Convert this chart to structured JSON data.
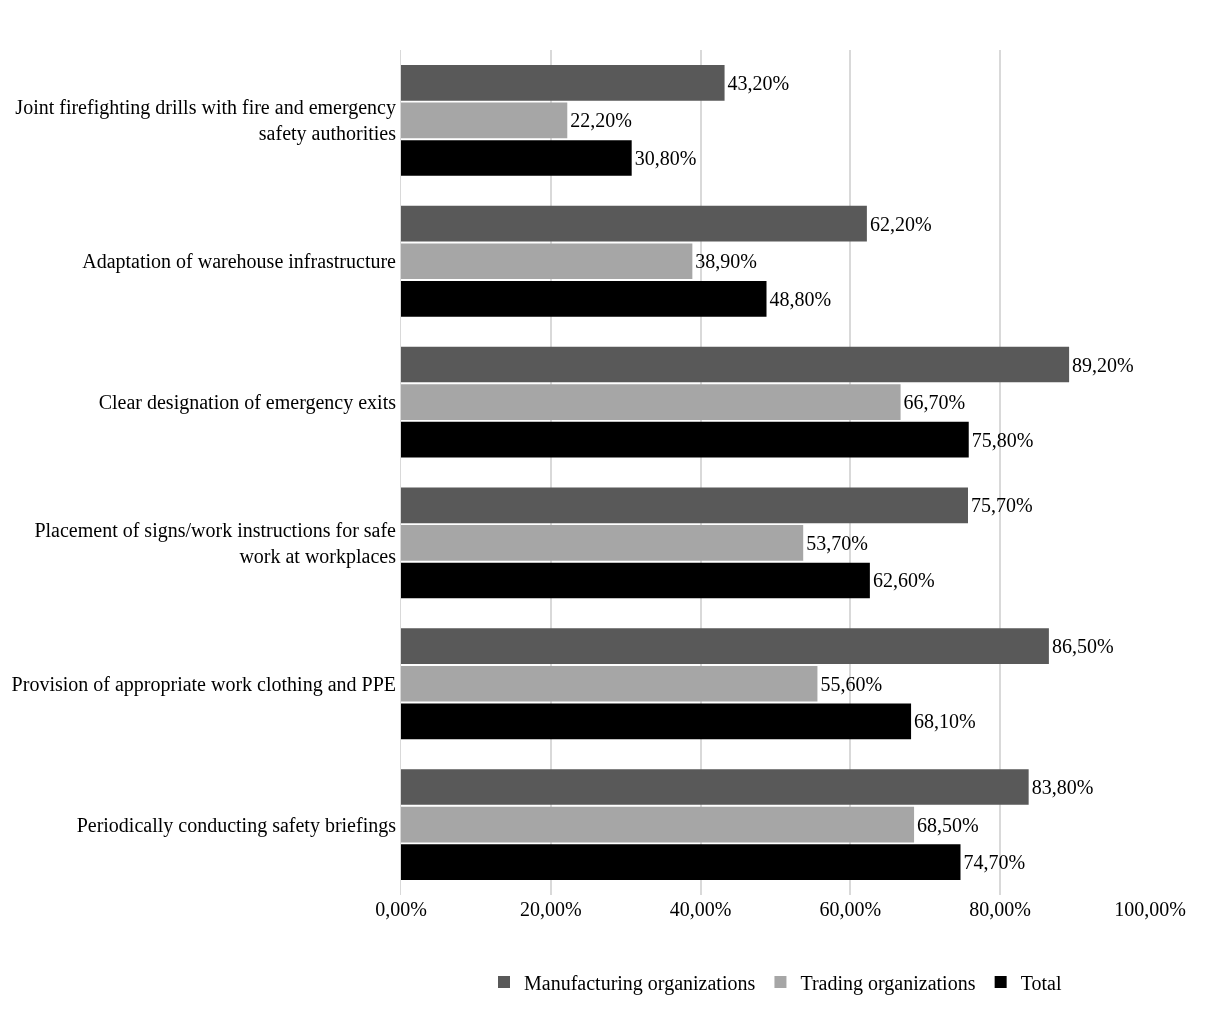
{
  "chart_data": {
    "type": "bar",
    "orientation": "horizontal",
    "categories": [
      "Joint firefighting drills with fire and emergency safety authorities",
      "Adaptation of warehouse infrastructure",
      "Clear designation of emergency exits",
      "Placement of signs/work instructions for safe work at workplaces",
      "Provision of appropriate work clothing and PPE",
      "Periodically conducting safety briefings"
    ],
    "series": [
      {
        "name": "Manufacturing organizations",
        "color": "#595959",
        "values": [
          43.2,
          62.2,
          89.2,
          75.7,
          86.5,
          83.8
        ],
        "value_labels": [
          "43,20%",
          "62,20%",
          "89,20%",
          "75,70%",
          "86,50%",
          "83,80%"
        ]
      },
      {
        "name": "Trading organizations",
        "color": "#a6a6a6",
        "values": [
          22.2,
          38.9,
          66.7,
          53.7,
          55.6,
          68.5
        ],
        "value_labels": [
          "22,20%",
          "38,90%",
          "66,70%",
          "53,70%",
          "55,60%",
          "68,50%"
        ]
      },
      {
        "name": "Total",
        "color": "#000000",
        "values": [
          30.8,
          48.8,
          75.8,
          62.6,
          68.1,
          74.7
        ],
        "value_labels": [
          "30,80%",
          "48,80%",
          "75,80%",
          "62,60%",
          "68,10%",
          "74,70%"
        ]
      }
    ],
    "xlim": [
      0,
      100
    ],
    "xticks": [
      {
        "value": 0,
        "label": "0,00%"
      },
      {
        "value": 20,
        "label": "20,00%"
      },
      {
        "value": 40,
        "label": "40,00%"
      },
      {
        "value": 60,
        "label": "60,00%"
      },
      {
        "value": 80,
        "label": "80,00%"
      },
      {
        "value": 100,
        "label": "100,00%"
      }
    ],
    "grid": "x",
    "legend": "bottom"
  }
}
